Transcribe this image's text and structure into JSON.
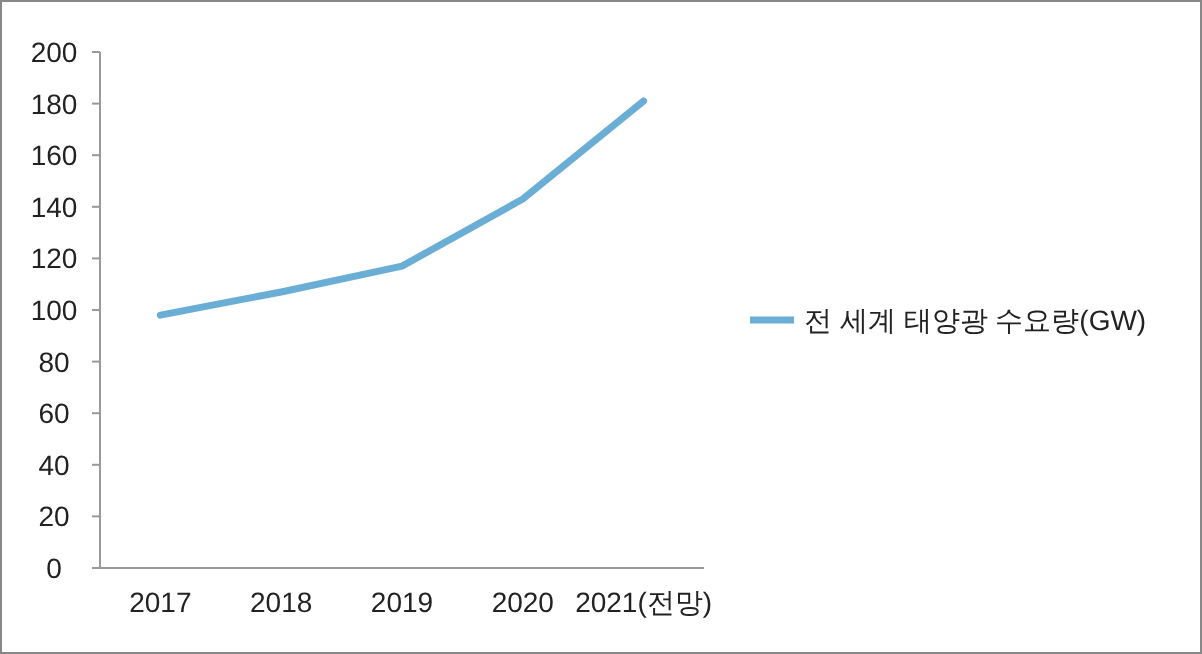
{
  "chart_data": {
    "type": "line",
    "categories": [
      "2017",
      "2018",
      "2019",
      "2020",
      "2021(전망)"
    ],
    "series": [
      {
        "name": "전 세계 태양광 수요량(GW)",
        "color": "#6aaed6",
        "values": [
          98,
          107,
          117,
          143,
          181
        ]
      }
    ],
    "ylim": [
      0,
      200
    ],
    "yticks": [
      0,
      20,
      40,
      60,
      80,
      100,
      120,
      140,
      160,
      180,
      200
    ],
    "grid": false,
    "legend": "right",
    "marker": "none",
    "line_style": "solid"
  }
}
